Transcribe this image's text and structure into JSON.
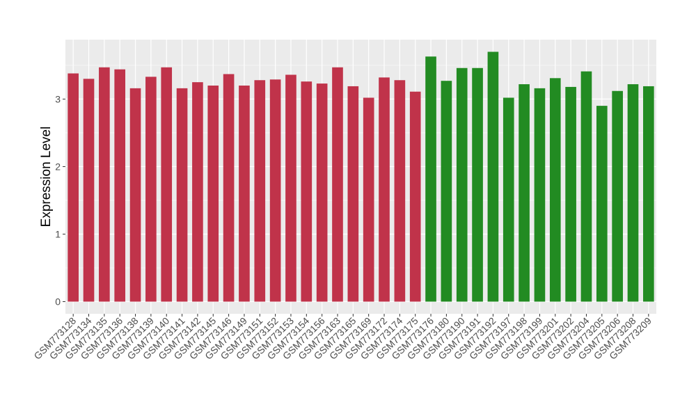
{
  "chart_data": {
    "type": "bar",
    "title": "",
    "xlabel": "",
    "ylabel": "Expression Level",
    "ylim": [
      -0.18,
      3.88
    ],
    "yticks": [
      0,
      1,
      2,
      3
    ],
    "grid": true,
    "legend": "none",
    "background": "#ebebeb",
    "gridline_color": "#ffffff",
    "categories": [
      "GSM773128",
      "GSM773134",
      "GSM773135",
      "GSM773136",
      "GSM773138",
      "GSM773139",
      "GSM773140",
      "GSM773141",
      "GSM773142",
      "GSM773145",
      "GSM773146",
      "GSM773149",
      "GSM773151",
      "GSM773152",
      "GSM773153",
      "GSM773154",
      "GSM773156",
      "GSM773163",
      "GSM773165",
      "GSM773169",
      "GSM773172",
      "GSM773174",
      "GSM773175",
      "GSM773176",
      "GSM773180",
      "GSM773190",
      "GSM773191",
      "GSM773192",
      "GSM773197",
      "GSM773198",
      "GSM773199",
      "GSM773201",
      "GSM773202",
      "GSM773204",
      "GSM773205",
      "GSM773206",
      "GSM773208",
      "GSM773209"
    ],
    "values": [
      3.38,
      3.3,
      3.47,
      3.44,
      3.16,
      3.33,
      3.47,
      3.16,
      3.25,
      3.2,
      3.37,
      3.2,
      3.28,
      3.29,
      3.36,
      3.26,
      3.23,
      3.47,
      3.19,
      3.02,
      3.32,
      3.28,
      3.11,
      3.63,
      3.27,
      3.46,
      3.46,
      3.7,
      3.02,
      3.22,
      3.16,
      3.31,
      3.18,
      3.41,
      2.9,
      3.12,
      3.22,
      3.19
    ],
    "bar_colors": [
      "#c0334a",
      "#c0334a",
      "#c0334a",
      "#c0334a",
      "#c0334a",
      "#c0334a",
      "#c0334a",
      "#c0334a",
      "#c0334a",
      "#c0334a",
      "#c0334a",
      "#c0334a",
      "#c0334a",
      "#c0334a",
      "#c0334a",
      "#c0334a",
      "#c0334a",
      "#c0334a",
      "#c0334a",
      "#c0334a",
      "#c0334a",
      "#c0334a",
      "#c0334a",
      "#228b22",
      "#228b22",
      "#228b22",
      "#228b22",
      "#228b22",
      "#228b22",
      "#228b22",
      "#228b22",
      "#228b22",
      "#228b22",
      "#228b22",
      "#228b22",
      "#228b22",
      "#228b22",
      "#228b22"
    ]
  }
}
